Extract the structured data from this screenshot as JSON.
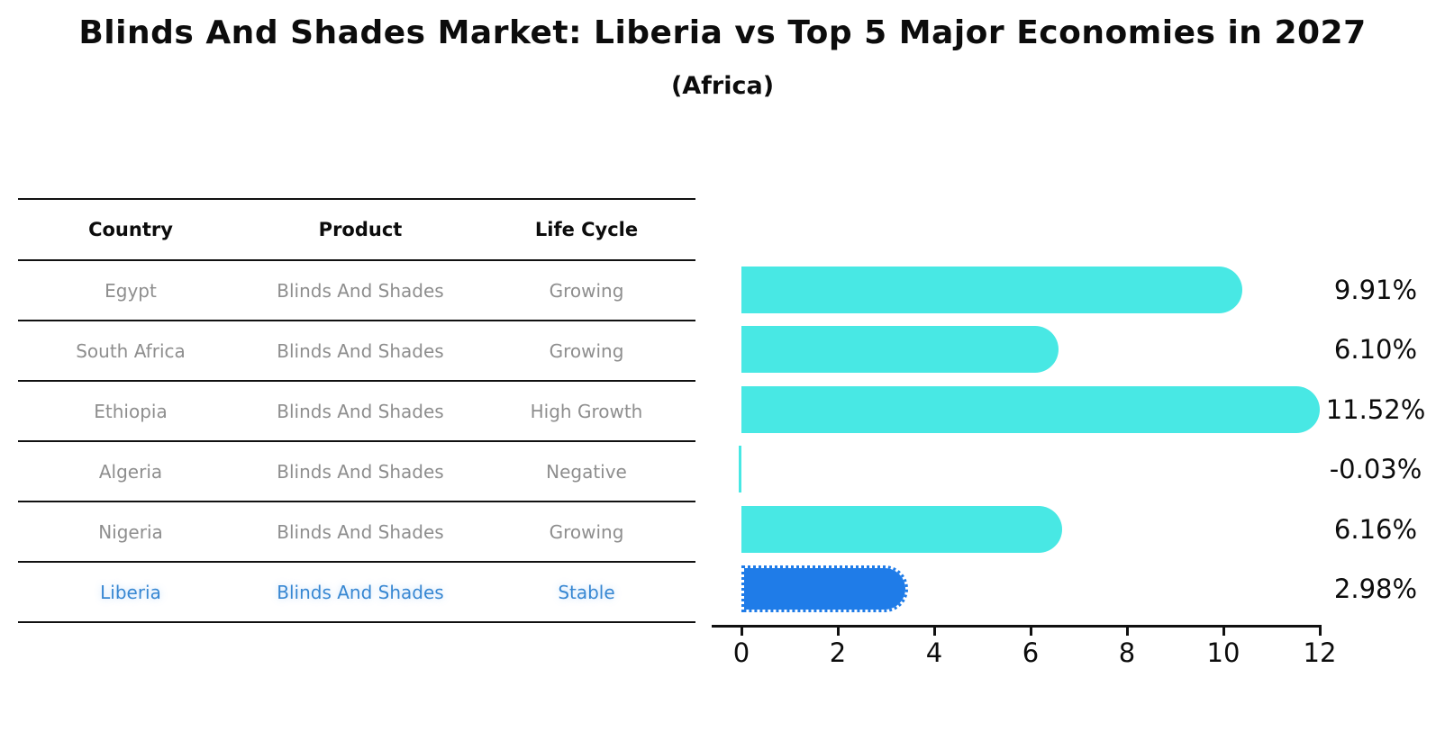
{
  "title": "Blinds And Shades Market: Liberia vs Top 5 Major Economies in 2027",
  "subtitle": "(Africa)",
  "colors": {
    "bar_default": "#48E8E4",
    "bar_highlight": "#1F7CE8",
    "highlight_text": "#3787D2",
    "table_text_gray": "#8E8E8E",
    "line_black": "#111111"
  },
  "table": {
    "headers": [
      "Country",
      "Product",
      "Life Cycle"
    ],
    "rows": [
      {
        "country": "Egypt",
        "product": "Blinds And Shades",
        "life_cycle": "Growing",
        "highlight": false
      },
      {
        "country": "South Africa",
        "product": "Blinds And Shades",
        "life_cycle": "Growing",
        "highlight": false
      },
      {
        "country": "Ethiopia",
        "product": "Blinds And Shades",
        "life_cycle": "High Growth",
        "highlight": false
      },
      {
        "country": "Algeria",
        "product": "Blinds And Shades",
        "life_cycle": "Negative",
        "highlight": false
      },
      {
        "country": "Nigeria",
        "product": "Blinds And Shades",
        "life_cycle": "Growing",
        "highlight": false
      },
      {
        "country": "Liberia",
        "product": "Blinds And Shades",
        "life_cycle": "Stable",
        "highlight": true
      }
    ]
  },
  "chart_data": {
    "type": "bar",
    "orientation": "horizontal",
    "title": "Blinds And Shades Market: Liberia vs Top 5 Major Economies in 2027",
    "subtitle": "(Africa)",
    "categories": [
      "Egypt",
      "South Africa",
      "Ethiopia",
      "Algeria",
      "Nigeria",
      "Liberia"
    ],
    "values": [
      9.91,
      6.1,
      11.52,
      -0.03,
      6.16,
      2.98
    ],
    "labels": [
      "9.91%",
      "6.10%",
      "11.52%",
      "-0.03%",
      "6.16%",
      "2.98%"
    ],
    "highlight_index": 5,
    "highlight_category": "Liberia",
    "xlim": [
      0,
      12
    ],
    "xticks": [
      0,
      2,
      4,
      6,
      8,
      10,
      12
    ],
    "xtick_labels": [
      "0",
      "2",
      "4",
      "6",
      "8",
      "10",
      "12"
    ],
    "grid": false,
    "legend": "none",
    "value_label_position": "right-outside"
  }
}
